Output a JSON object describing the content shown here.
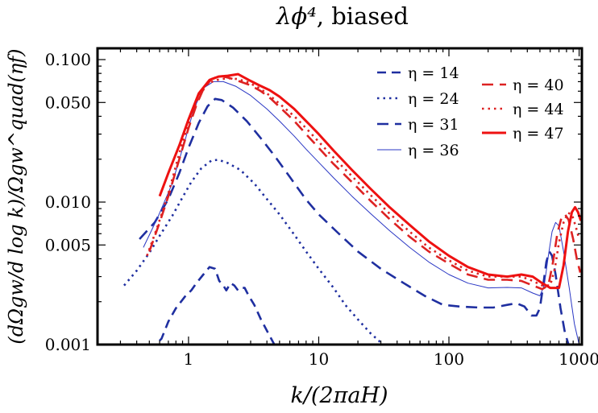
{
  "chart_data": {
    "type": "line",
    "title_math": "λϕ⁴",
    "title_rest": ", biased",
    "xlabel": "k/(2πaH)",
    "ylabel": "(dΩgw/d log k)/Ωgw^quad(ηf)",
    "xscale": "log",
    "yscale": "log",
    "xlim": [
      0.2,
      1050
    ],
    "ylim": [
      0.001,
      0.12
    ],
    "xticks": [
      {
        "value": 1,
        "label": "1"
      },
      {
        "value": 10,
        "label": "10"
      },
      {
        "value": 100,
        "label": "100"
      },
      {
        "value": 1000,
        "label": "1000"
      }
    ],
    "yticks": [
      {
        "value": 0.001,
        "label": "0.001"
      },
      {
        "value": 0.005,
        "label": "0.005"
      },
      {
        "value": 0.01,
        "label": "0.010"
      },
      {
        "value": 0.05,
        "label": "0.050"
      },
      {
        "value": 0.1,
        "label": "0.100"
      }
    ],
    "grid": false,
    "legend_placement": "top-right, two columns",
    "series": [
      {
        "name": "η = 14",
        "eta_text": "14",
        "color": "#1f2fa0",
        "style": "longdash",
        "width": 2.6,
        "points": [
          [
            0.5,
            0.0009
          ],
          [
            0.62,
            0.0011
          ],
          [
            0.7,
            0.00145
          ],
          [
            0.8,
            0.0018
          ],
          [
            0.95,
            0.0022
          ],
          [
            1.05,
            0.0024
          ],
          [
            1.15,
            0.0027
          ],
          [
            1.3,
            0.0031
          ],
          [
            1.45,
            0.0035
          ],
          [
            1.6,
            0.0034
          ],
          [
            1.72,
            0.0028
          ],
          [
            1.85,
            0.0026
          ],
          [
            1.95,
            0.0024
          ],
          [
            2.1,
            0.0027
          ],
          [
            2.25,
            0.0026
          ],
          [
            2.4,
            0.0024
          ],
          [
            2.55,
            0.0025
          ],
          [
            2.7,
            0.0025
          ],
          [
            2.9,
            0.0022
          ],
          [
            3.2,
            0.0019
          ],
          [
            3.6,
            0.0015
          ],
          [
            4.1,
            0.0012
          ],
          [
            4.7,
            0.00095
          ]
        ]
      },
      {
        "name": "η = 24",
        "eta_text": "24",
        "color": "#1f2fa0",
        "style": "dotted",
        "width": 2.6,
        "points": [
          [
            0.32,
            0.0026
          ],
          [
            0.4,
            0.0033
          ],
          [
            0.5,
            0.0044
          ],
          [
            0.6,
            0.0058
          ],
          [
            0.75,
            0.008
          ],
          [
            0.9,
            0.0108
          ],
          [
            1.05,
            0.0138
          ],
          [
            1.25,
            0.0172
          ],
          [
            1.5,
            0.0196
          ],
          [
            1.7,
            0.0198
          ],
          [
            2.0,
            0.0188
          ],
          [
            2.5,
            0.0168
          ],
          [
            3.2,
            0.0135
          ],
          [
            4,
            0.0105
          ],
          [
            5,
            0.0082
          ],
          [
            6.5,
            0.0059
          ],
          [
            8,
            0.0045
          ],
          [
            10,
            0.0034
          ],
          [
            13,
            0.0025
          ],
          [
            16,
            0.0019
          ],
          [
            20,
            0.0015
          ],
          [
            25,
            0.0012
          ],
          [
            32,
            0.00098
          ]
        ]
      },
      {
        "name": "η = 31",
        "eta_text": "31",
        "color": "#1f2fa0",
        "style": "dashed",
        "width": 2.6,
        "points": [
          [
            0.42,
            0.0055
          ],
          [
            0.55,
            0.0072
          ],
          [
            0.7,
            0.0105
          ],
          [
            0.85,
            0.016
          ],
          [
            1.0,
            0.024
          ],
          [
            1.2,
            0.036
          ],
          [
            1.4,
            0.047
          ],
          [
            1.6,
            0.053
          ],
          [
            1.8,
            0.052
          ],
          [
            2.2,
            0.046
          ],
          [
            2.8,
            0.037
          ],
          [
            3.6,
            0.028
          ],
          [
            4.6,
            0.021
          ],
          [
            6,
            0.015
          ],
          [
            8,
            0.0104
          ],
          [
            10,
            0.0082
          ],
          [
            14,
            0.0061
          ],
          [
            20,
            0.0045
          ],
          [
            30,
            0.0034
          ],
          [
            45,
            0.0027
          ],
          [
            65,
            0.0022
          ],
          [
            90,
            0.0019
          ],
          [
            120,
            0.00185
          ],
          [
            170,
            0.00182
          ],
          [
            220,
            0.00182
          ],
          [
            280,
            0.0019
          ],
          [
            330,
            0.00195
          ],
          [
            380,
            0.00185
          ],
          [
            430,
            0.0016
          ],
          [
            470,
            0.0016
          ],
          [
            500,
            0.0018
          ],
          [
            530,
            0.0026
          ],
          [
            560,
            0.0038
          ],
          [
            590,
            0.0045
          ],
          [
            620,
            0.0042
          ],
          [
            660,
            0.0031
          ],
          [
            720,
            0.0018
          ],
          [
            780,
            0.0012
          ],
          [
            830,
            0.001
          ]
        ]
      },
      {
        "name": "η = 36",
        "eta_text": "36",
        "color": "#2a37c4",
        "style": "solid",
        "width": 1.0,
        "points": [
          [
            0.45,
            0.0048
          ],
          [
            0.58,
            0.0078
          ],
          [
            0.75,
            0.0135
          ],
          [
            0.95,
            0.028
          ],
          [
            1.1,
            0.045
          ],
          [
            1.3,
            0.063
          ],
          [
            1.55,
            0.07
          ],
          [
            1.85,
            0.07
          ],
          [
            2.3,
            0.065
          ],
          [
            3,
            0.056
          ],
          [
            4,
            0.045
          ],
          [
            5,
            0.037
          ],
          [
            6.5,
            0.029
          ],
          [
            8,
            0.0235
          ],
          [
            10,
            0.019
          ],
          [
            13,
            0.0148
          ],
          [
            18,
            0.011
          ],
          [
            25,
            0.0083
          ],
          [
            35,
            0.0063
          ],
          [
            50,
            0.0048
          ],
          [
            70,
            0.0038
          ],
          [
            100,
            0.0031
          ],
          [
            140,
            0.0027
          ],
          [
            200,
            0.0025
          ],
          [
            280,
            0.00252
          ],
          [
            360,
            0.0025
          ],
          [
            440,
            0.0023
          ],
          [
            500,
            0.0022
          ],
          [
            540,
            0.0026
          ],
          [
            580,
            0.0042
          ],
          [
            620,
            0.0062
          ],
          [
            660,
            0.0072
          ],
          [
            700,
            0.0068
          ],
          [
            760,
            0.0045
          ],
          [
            840,
            0.0025
          ],
          [
            920,
            0.0014
          ],
          [
            1000,
            0.001
          ]
        ]
      },
      {
        "name": "η = 40",
        "eta_text": "40",
        "color": "#dd2222",
        "style": "dashed",
        "width": 2.6,
        "points": [
          [
            0.5,
            0.0045
          ],
          [
            0.6,
            0.0072
          ],
          [
            0.7,
            0.011
          ],
          [
            0.85,
            0.02
          ],
          [
            1.0,
            0.033
          ],
          [
            1.15,
            0.048
          ],
          [
            1.3,
            0.062
          ],
          [
            1.5,
            0.073
          ],
          [
            1.75,
            0.077
          ],
          [
            2.1,
            0.074
          ],
          [
            2.5,
            0.07
          ],
          [
            3,
            0.066
          ],
          [
            3.6,
            0.06
          ],
          [
            4.3,
            0.053
          ],
          [
            5.2,
            0.045
          ],
          [
            6.5,
            0.037
          ],
          [
            8,
            0.03
          ],
          [
            10,
            0.024
          ],
          [
            13,
            0.0185
          ],
          [
            18,
            0.0138
          ],
          [
            25,
            0.0102
          ],
          [
            35,
            0.0076
          ],
          [
            50,
            0.0057
          ],
          [
            70,
            0.0045
          ],
          [
            100,
            0.0037
          ],
          [
            140,
            0.0031
          ],
          [
            200,
            0.00285
          ],
          [
            280,
            0.00285
          ],
          [
            360,
            0.0028
          ],
          [
            440,
            0.0026
          ],
          [
            520,
            0.00245
          ],
          [
            580,
            0.0026
          ],
          [
            630,
            0.0038
          ],
          [
            680,
            0.006
          ],
          [
            730,
            0.0077
          ],
          [
            780,
            0.0082
          ],
          [
            830,
            0.0075
          ],
          [
            900,
            0.0055
          ],
          [
            960,
            0.004
          ],
          [
            1020,
            0.0032
          ]
        ]
      },
      {
        "name": "η = 44",
        "eta_text": "44",
        "color": "#dd2222",
        "style": "dotted",
        "width": 2.6,
        "points": [
          [
            0.48,
            0.0042
          ],
          [
            0.58,
            0.0068
          ],
          [
            0.7,
            0.0115
          ],
          [
            0.85,
            0.022
          ],
          [
            1.0,
            0.036
          ],
          [
            1.2,
            0.055
          ],
          [
            1.4,
            0.068
          ],
          [
            1.65,
            0.072
          ],
          [
            2,
            0.074
          ],
          [
            2.4,
            0.073
          ],
          [
            2.9,
            0.069
          ],
          [
            3.5,
            0.063
          ],
          [
            4.2,
            0.056
          ],
          [
            5,
            0.049
          ],
          [
            6.5,
            0.04
          ],
          [
            8,
            0.033
          ],
          [
            10,
            0.0265
          ],
          [
            13,
            0.0205
          ],
          [
            18,
            0.0152
          ],
          [
            25,
            0.0112
          ],
          [
            35,
            0.0083
          ],
          [
            50,
            0.0062
          ],
          [
            70,
            0.0048
          ],
          [
            100,
            0.0039
          ],
          [
            140,
            0.0033
          ],
          [
            200,
            0.003
          ],
          [
            280,
            0.003
          ],
          [
            360,
            0.003
          ],
          [
            440,
            0.0028
          ],
          [
            520,
            0.0026
          ],
          [
            600,
            0.0026
          ],
          [
            650,
            0.0034
          ],
          [
            700,
            0.0052
          ],
          [
            760,
            0.0072
          ],
          [
            820,
            0.0084
          ],
          [
            880,
            0.0082
          ],
          [
            940,
            0.0068
          ],
          [
            1000,
            0.0055
          ]
        ]
      },
      {
        "name": "η = 47",
        "eta_text": "47",
        "color": "#ee1111",
        "style": "solid",
        "width": 3.0,
        "points": [
          [
            0.6,
            0.011
          ],
          [
            0.7,
            0.016
          ],
          [
            0.85,
            0.025
          ],
          [
            1.0,
            0.038
          ],
          [
            1.2,
            0.058
          ],
          [
            1.45,
            0.072
          ],
          [
            1.7,
            0.076
          ],
          [
            2.0,
            0.077
          ],
          [
            2.4,
            0.079
          ],
          [
            2.9,
            0.072
          ],
          [
            3.5,
            0.066
          ],
          [
            4.2,
            0.061
          ],
          [
            5,
            0.055
          ],
          [
            6.5,
            0.045
          ],
          [
            8,
            0.037
          ],
          [
            10,
            0.03
          ],
          [
            13,
            0.023
          ],
          [
            18,
            0.0168
          ],
          [
            25,
            0.0124
          ],
          [
            35,
            0.0092
          ],
          [
            50,
            0.0069
          ],
          [
            70,
            0.0053
          ],
          [
            100,
            0.0042
          ],
          [
            140,
            0.0035
          ],
          [
            200,
            0.0031
          ],
          [
            280,
            0.003
          ],
          [
            360,
            0.0031
          ],
          [
            440,
            0.003
          ],
          [
            520,
            0.0027
          ],
          [
            600,
            0.0025
          ],
          [
            700,
            0.0025
          ],
          [
            760,
            0.0036
          ],
          [
            820,
            0.0062
          ],
          [
            880,
            0.0085
          ],
          [
            930,
            0.0092
          ],
          [
            980,
            0.0085
          ],
          [
            1030,
            0.0074
          ]
        ]
      }
    ]
  }
}
